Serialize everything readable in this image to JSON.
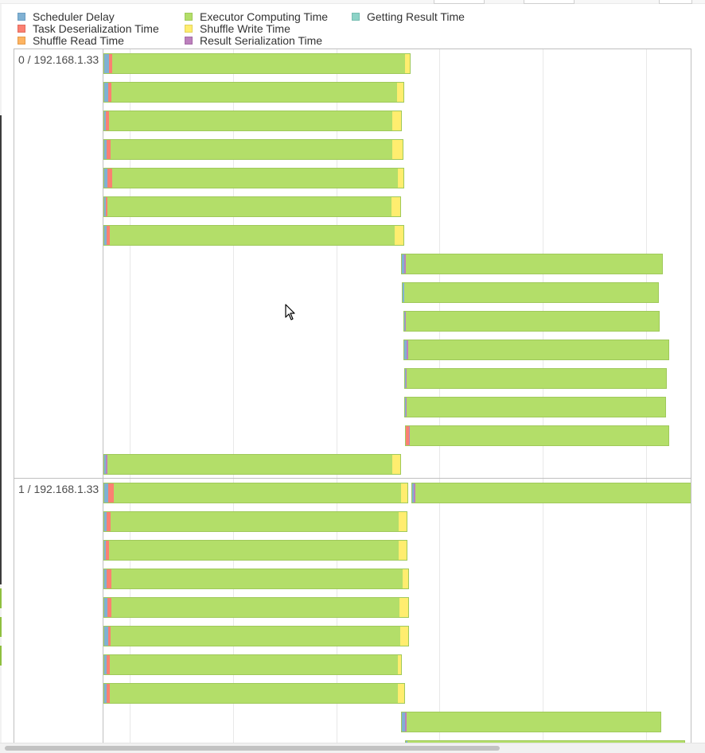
{
  "legend": {
    "items": [
      {
        "label": "Scheduler Delay",
        "color": "#80b1d3"
      },
      {
        "label": "Task Deserialization Time",
        "color": "#fb8072"
      },
      {
        "label": "Shuffle Read Time",
        "color": "#fdb462"
      },
      {
        "label": "Executor Computing Time",
        "color": "#b3de69"
      },
      {
        "label": "Shuffle Write Time",
        "color": "#ffed6f"
      },
      {
        "label": "Result Serialization Time",
        "color": "#bc80bd"
      },
      {
        "label": "Getting Result Time",
        "color": "#8dd3c7"
      }
    ]
  },
  "timeline": {
    "groups": [
      {
        "label": "0 / 192.168.1.33",
        "tasks": [
          {
            "start": 0.0,
            "segments": [
              {
                "phase": "scheduler",
                "dur": 6
              },
              {
                "phase": "deserialization",
                "dur": 4
              },
              {
                "phase": "compute",
                "dur": 370
              },
              {
                "phase": "shuffle_write",
                "dur": 6
              }
            ]
          },
          {
            "start": 0.0,
            "segments": [
              {
                "phase": "scheduler",
                "dur": 5
              },
              {
                "phase": "deserialization",
                "dur": 4
              },
              {
                "phase": "compute",
                "dur": 361
              },
              {
                "phase": "shuffle_write",
                "dur": 8
              }
            ]
          },
          {
            "start": 0.0,
            "segments": [
              {
                "phase": "scheduler",
                "dur": 2
              },
              {
                "phase": "deserialization",
                "dur": 4
              },
              {
                "phase": "compute",
                "dur": 358
              },
              {
                "phase": "shuffle_write",
                "dur": 11
              }
            ]
          },
          {
            "start": 0.0,
            "segments": [
              {
                "phase": "scheduler",
                "dur": 3
              },
              {
                "phase": "deserialization",
                "dur": 5
              },
              {
                "phase": "compute",
                "dur": 356
              },
              {
                "phase": "shuffle_write",
                "dur": 13
              }
            ]
          },
          {
            "start": 0.0,
            "segments": [
              {
                "phase": "scheduler",
                "dur": 4
              },
              {
                "phase": "deserialization",
                "dur": 6
              },
              {
                "phase": "compute",
                "dur": 361
              },
              {
                "phase": "shuffle_write",
                "dur": 7
              }
            ]
          },
          {
            "start": 0.0,
            "segments": [
              {
                "phase": "scheduler",
                "dur": 2
              },
              {
                "phase": "deserialization",
                "dur": 2
              },
              {
                "phase": "compute",
                "dur": 359
              },
              {
                "phase": "shuffle_write",
                "dur": 11
              }
            ]
          },
          {
            "start": 0.0,
            "segments": [
              {
                "phase": "scheduler",
                "dur": 3
              },
              {
                "phase": "deserialization",
                "dur": 4
              },
              {
                "phase": "compute",
                "dur": 360
              },
              {
                "phase": "shuffle_write",
                "dur": 11
              }
            ]
          },
          {
            "start": 374,
            "segments": [
              {
                "phase": "scheduler",
                "dur": 3
              },
              {
                "phase": "result_serialization",
                "dur": 2
              },
              {
                "phase": "compute",
                "dur": 324
              }
            ]
          },
          {
            "start": 375,
            "segments": [
              {
                "phase": "scheduler",
                "dur": 2
              },
              {
                "phase": "compute",
                "dur": 321
              }
            ]
          },
          {
            "start": 377,
            "segments": [
              {
                "phase": "scheduler",
                "dur": 1
              },
              {
                "phase": "result_serialization",
                "dur": 1
              },
              {
                "phase": "compute",
                "dur": 320
              }
            ]
          },
          {
            "start": 377,
            "segments": [
              {
                "phase": "scheduler",
                "dur": 3
              },
              {
                "phase": "result_serialization",
                "dur": 2
              },
              {
                "phase": "compute",
                "dur": 329
              }
            ]
          },
          {
            "start": 378,
            "segments": [
              {
                "phase": "scheduler",
                "dur": 1
              },
              {
                "phase": "result_serialization",
                "dur": 1
              },
              {
                "phase": "compute",
                "dur": 328
              }
            ]
          },
          {
            "start": 378,
            "segments": [
              {
                "phase": "scheduler",
                "dur": 1
              },
              {
                "phase": "result_serialization",
                "dur": 1
              },
              {
                "phase": "compute",
                "dur": 327
              }
            ]
          },
          {
            "start": 379,
            "segments": [
              {
                "phase": "deserialization",
                "dur": 4
              },
              {
                "phase": "result_serialization",
                "dur": 1
              },
              {
                "phase": "compute",
                "dur": 327
              }
            ]
          },
          {
            "start": 0.0,
            "segments": [
              {
                "phase": "scheduler",
                "dur": 2
              },
              {
                "phase": "result_serialization",
                "dur": 2
              },
              {
                "phase": "compute",
                "dur": 360
              },
              {
                "phase": "shuffle_write",
                "dur": 10
              }
            ]
          },
          {
            "start": 387,
            "segments": [
              {
                "phase": "scheduler",
                "dur": 2
              },
              {
                "phase": "result_serialization",
                "dur": 2
              },
              {
                "phase": "compute",
                "dur": 356
              }
            ]
          }
        ]
      },
      {
        "label": "1 / 192.168.1.33",
        "tasks": [
          {
            "start": 0.0,
            "segments": [
              {
                "phase": "scheduler",
                "dur": 5
              },
              {
                "phase": "deserialization",
                "dur": 7
              },
              {
                "phase": "compute",
                "dur": 363
              },
              {
                "phase": "shuffle_write",
                "dur": 8
              }
            ]
          },
          {
            "start": 0.0,
            "segments": [
              {
                "phase": "scheduler",
                "dur": 3
              },
              {
                "phase": "deserialization",
                "dur": 5
              },
              {
                "phase": "compute",
                "dur": 364
              },
              {
                "phase": "shuffle_write",
                "dur": 10
              }
            ]
          },
          {
            "start": 0.0,
            "segments": [
              {
                "phase": "scheduler",
                "dur": 2
              },
              {
                "phase": "deserialization",
                "dur": 4
              },
              {
                "phase": "compute",
                "dur": 366
              },
              {
                "phase": "shuffle_write",
                "dur": 10
              }
            ]
          },
          {
            "start": 0.0,
            "segments": [
              {
                "phase": "scheduler",
                "dur": 3
              },
              {
                "phase": "deserialization",
                "dur": 6
              },
              {
                "phase": "compute",
                "dur": 368
              },
              {
                "phase": "shuffle_write",
                "dur": 7
              }
            ]
          },
          {
            "start": 0.0,
            "segments": [
              {
                "phase": "scheduler",
                "dur": 4
              },
              {
                "phase": "deserialization",
                "dur": 5
              },
              {
                "phase": "compute",
                "dur": 364
              },
              {
                "phase": "shuffle_write",
                "dur": 11
              }
            ]
          },
          {
            "start": 0.0,
            "segments": [
              {
                "phase": "scheduler",
                "dur": 5
              },
              {
                "phase": "deserialization",
                "dur": 3
              },
              {
                "phase": "compute",
                "dur": 366
              },
              {
                "phase": "shuffle_write",
                "dur": 10
              }
            ]
          },
          {
            "start": 0.0,
            "segments": [
              {
                "phase": "scheduler",
                "dur": 3
              },
              {
                "phase": "deserialization",
                "dur": 4
              },
              {
                "phase": "compute",
                "dur": 364
              },
              {
                "phase": "shuffle_write",
                "dur": 4
              }
            ]
          },
          {
            "start": 0.0,
            "segments": [
              {
                "phase": "scheduler",
                "dur": 3
              },
              {
                "phase": "deserialization",
                "dur": 4
              },
              {
                "phase": "compute",
                "dur": 364
              },
              {
                "phase": "shuffle_write",
                "dur": 8
              }
            ]
          },
          {
            "start": 374,
            "segments": [
              {
                "phase": "scheduler",
                "dur": 4
              },
              {
                "phase": "result_serialization",
                "dur": 2
              },
              {
                "phase": "compute",
                "dur": 321
              }
            ]
          },
          {
            "start": 379,
            "segments": [
              {
                "phase": "scheduler",
                "dur": 2
              },
              {
                "phase": "compute",
                "dur": 350
              }
            ]
          }
        ]
      }
    ]
  }
}
